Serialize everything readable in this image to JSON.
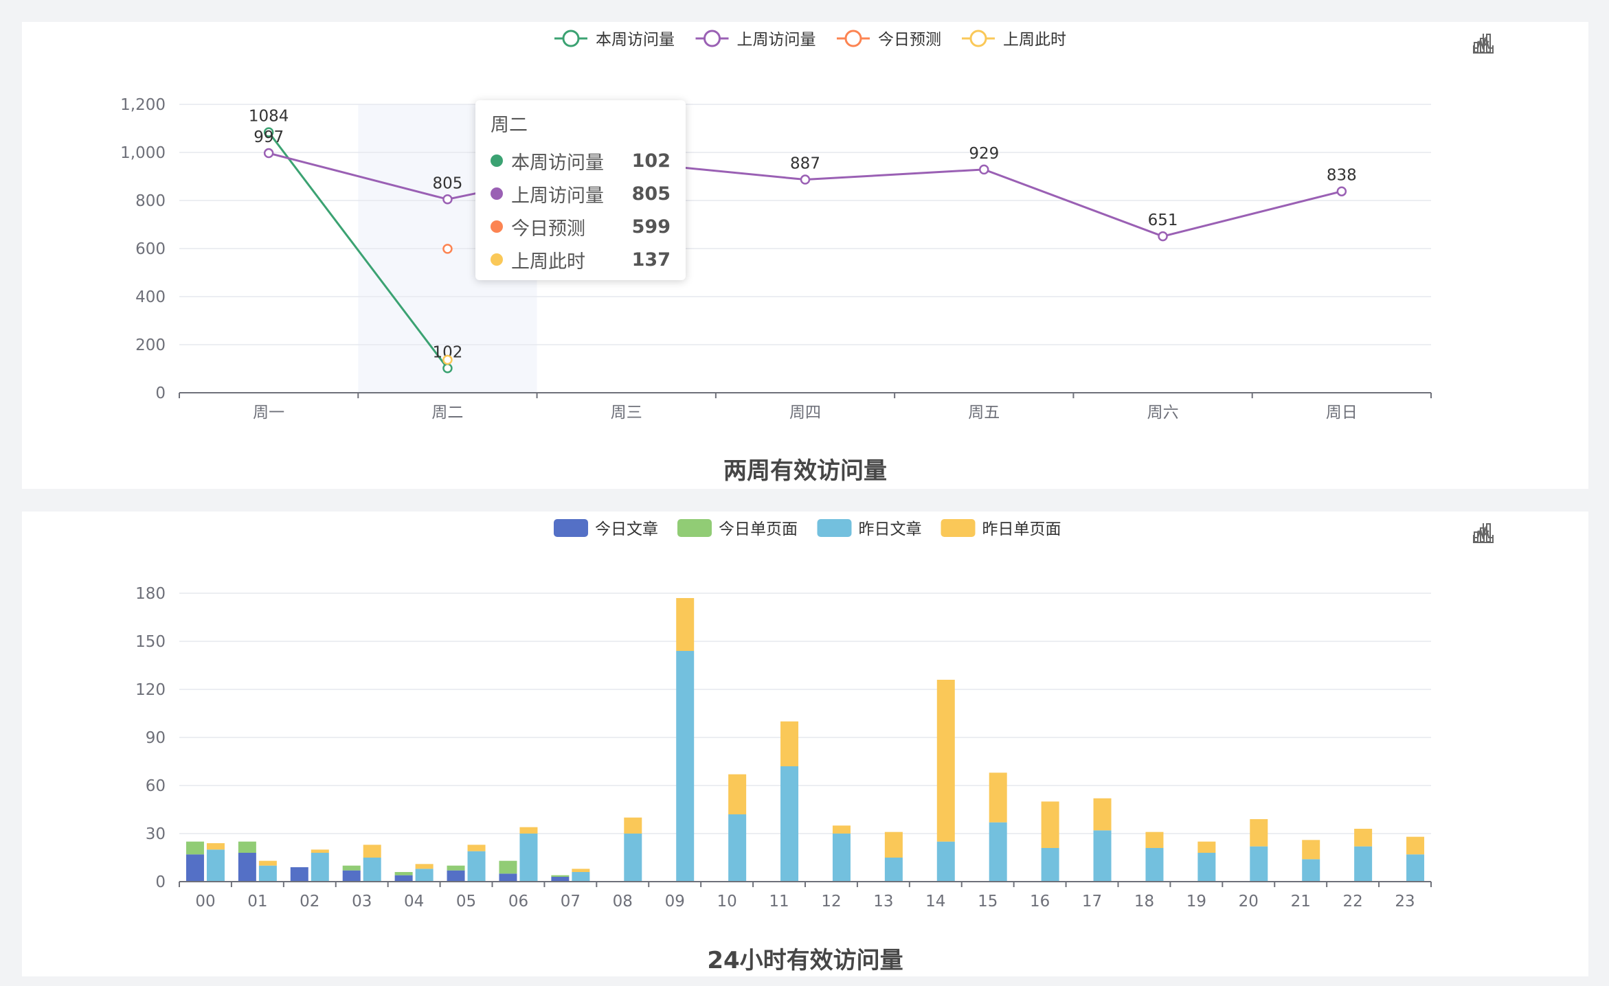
{
  "colors": {
    "this_week": "#3ba272",
    "last_week": "#9a60b4",
    "today_forecast": "#fc8452",
    "last_week_now": "#fac858",
    "today_article": "#5470c6",
    "today_page": "#91cc75",
    "yesterday_article": "#73c0de",
    "yesterday_page": "#fac858"
  },
  "toolbox": {
    "icons": [
      "line-chart-icon",
      "bar-chart-icon",
      "download-icon"
    ]
  },
  "chart_data": [
    {
      "type": "line",
      "title": "两周有效访问量",
      "categories": [
        "周一",
        "周二",
        "周三",
        "周四",
        "周五",
        "周六",
        "周日"
      ],
      "ylim": [
        0,
        1200
      ],
      "yticks": [
        "0",
        "200",
        "400",
        "600",
        "800",
        "1,000",
        "1,200"
      ],
      "ytick_values": [
        0,
        200,
        400,
        600,
        800,
        1000,
        1200
      ],
      "legend": [
        "本周访问量",
        "上周访问量",
        "今日预测",
        "上周此时"
      ],
      "legend_position": "top-center",
      "grid": true,
      "highlighted_category": "周二",
      "series": [
        {
          "name": "本周访问量",
          "values": [
            1084,
            102,
            null,
            null,
            null,
            null,
            null
          ],
          "labels": [
            "1084",
            "102",
            "",
            "",
            "",
            "",
            ""
          ]
        },
        {
          "name": "上周访问量",
          "values": [
            997,
            805,
            960,
            887,
            929,
            651,
            838
          ],
          "labels": [
            "997",
            "805",
            "",
            "887",
            "929",
            "651",
            "838"
          ]
        },
        {
          "name": "今日预测",
          "values": [
            null,
            599,
            null,
            null,
            null,
            null,
            null
          ]
        },
        {
          "name": "上周此时",
          "values": [
            null,
            137,
            null,
            null,
            null,
            null,
            null
          ]
        }
      ],
      "tooltip": {
        "title": "周二",
        "rows": [
          {
            "name": "本周访问量",
            "value": "102"
          },
          {
            "name": "上周访问量",
            "value": "805"
          },
          {
            "name": "今日预测",
            "value": "599"
          },
          {
            "name": "上周此时",
            "value": "137"
          }
        ]
      }
    },
    {
      "type": "bar",
      "title": "24小时有效访问量",
      "categories": [
        "00",
        "01",
        "02",
        "03",
        "04",
        "05",
        "06",
        "07",
        "08",
        "09",
        "10",
        "11",
        "12",
        "13",
        "14",
        "15",
        "16",
        "17",
        "18",
        "19",
        "20",
        "21",
        "22",
        "23"
      ],
      "ylim": [
        0,
        180
      ],
      "yticks": [
        "0",
        "30",
        "60",
        "90",
        "120",
        "150",
        "180"
      ],
      "ytick_values": [
        0,
        30,
        60,
        90,
        120,
        150,
        180
      ],
      "legend": [
        "今日文章",
        "今日单页面",
        "昨日文章",
        "昨日单页面"
      ],
      "legend_position": "top-center",
      "grid": true,
      "stacks": [
        {
          "name": "今日",
          "series": [
            {
              "name": "今日文章",
              "values": [
                17,
                18,
                9,
                7,
                4,
                7,
                5,
                3,
                0,
                0,
                0,
                0,
                0,
                0,
                0,
                0,
                0,
                0,
                0,
                0,
                0,
                0,
                0,
                0
              ]
            },
            {
              "name": "今日单页面",
              "values": [
                8,
                7,
                0,
                3,
                2,
                3,
                8,
                1,
                0,
                0,
                0,
                0,
                0,
                0,
                0,
                0,
                0,
                0,
                0,
                0,
                0,
                0,
                0,
                0
              ]
            }
          ]
        },
        {
          "name": "昨日",
          "series": [
            {
              "name": "昨日文章",
              "values": [
                20,
                10,
                18,
                15,
                8,
                19,
                30,
                6,
                30,
                144,
                42,
                72,
                30,
                15,
                25,
                37,
                21,
                32,
                21,
                18,
                22,
                14,
                22,
                17
              ]
            },
            {
              "name": "昨日单页面",
              "values": [
                4,
                3,
                2,
                8,
                3,
                4,
                4,
                2,
                10,
                33,
                25,
                28,
                5,
                16,
                101,
                31,
                29,
                20,
                10,
                7,
                17,
                12,
                11,
                11
              ]
            }
          ]
        }
      ]
    }
  ]
}
